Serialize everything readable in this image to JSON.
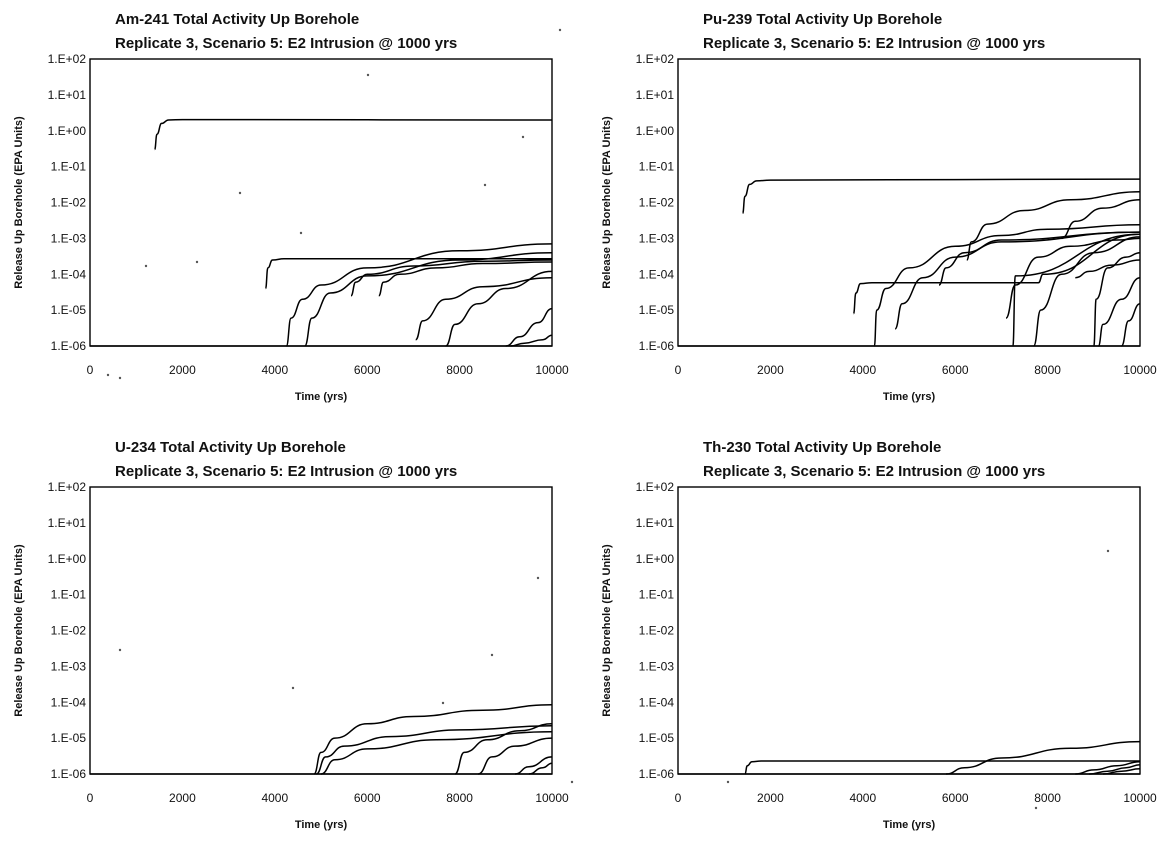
{
  "chart_data": [
    {
      "type": "line",
      "title": "Am-241 Total Activity Up Borehole",
      "subtitle": "Replicate 3, Scenario 5: E2 Intrusion @ 1000 yrs",
      "xlabel": "Time (yrs)",
      "ylabel": "Release Up Borehole (EPA Units)",
      "xlim": [
        0,
        10000
      ],
      "ylim": [
        1e-06,
        100
      ],
      "yscale": "log",
      "grid": false,
      "x_ticks": [
        "0",
        "2000",
        "4000",
        "6000",
        "8000",
        "10000"
      ],
      "y_ticks": [
        "1.E-06",
        "1.E-05",
        "1.E-04",
        "1.E-03",
        "1.E-02",
        "1.E-01",
        "1.E+00",
        "1.E+01",
        "1.E+02"
      ],
      "series": [
        {
          "x": [
            1400,
            1450,
            1550,
            1700,
            2000,
            10000
          ],
          "y": [
            0.3,
            0.8,
            1.6,
            2.0,
            2.05,
            2.0
          ]
        },
        {
          "x": [
            3800,
            3850,
            3950,
            4200,
            10000
          ],
          "y": [
            4e-05,
            0.00015,
            0.00025,
            0.00027,
            0.00027
          ]
        },
        {
          "x": [
            4250,
            4350,
            4600,
            5000,
            6000,
            8000,
            10000
          ],
          "y": [
            1e-06,
            6e-06,
            2e-05,
            5e-05,
            0.00015,
            0.00045,
            0.0007
          ]
        },
        {
          "x": [
            4650,
            4800,
            5200,
            6000,
            8000,
            10000
          ],
          "y": [
            1e-06,
            6e-06,
            3e-05,
            9e-05,
            0.00025,
            0.0004
          ]
        },
        {
          "x": [
            5650,
            5750,
            6000,
            7000,
            8500,
            10000
          ],
          "y": [
            2.5e-05,
            6e-05,
            0.0001,
            0.00017,
            0.00023,
            0.00025
          ]
        },
        {
          "x": [
            6250,
            6350,
            6700,
            7500,
            8500,
            10000
          ],
          "y": [
            2.5e-05,
            6e-05,
            0.0001,
            0.00015,
            0.0002,
            0.00022
          ]
        },
        {
          "x": [
            7050,
            7200,
            7700,
            8500,
            10000
          ],
          "y": [
            1.5e-06,
            5e-06,
            2e-05,
            4.5e-05,
            8e-05
          ]
        },
        {
          "x": [
            7700,
            7900,
            8400,
            9000,
            10000
          ],
          "y": [
            1e-06,
            4e-06,
            1.5e-05,
            4e-05,
            0.00012
          ]
        },
        {
          "x": [
            9000,
            9300,
            9700,
            10000
          ],
          "y": [
            1e-06,
            1.8e-06,
            4.5e-06,
            1.1e-05
          ]
        },
        {
          "x": [
            9100,
            9400,
            9800,
            10000
          ],
          "y": [
            1e-06,
            1.2e-06,
            1.5e-06,
            2e-06
          ]
        },
        {
          "x": [
            0,
            10000
          ],
          "y": [
            1e-06,
            1e-06
          ]
        }
      ]
    },
    {
      "type": "line",
      "title": "Pu-239 Total Activity Up Borehole",
      "subtitle": "Replicate 3, Scenario 5: E2 Intrusion @ 1000 yrs",
      "xlabel": "Time (yrs)",
      "ylabel": "Release Up Borehole (EPA Units)",
      "xlim": [
        0,
        10000
      ],
      "ylim": [
        1e-06,
        100
      ],
      "yscale": "log",
      "grid": false,
      "x_ticks": [
        "0",
        "2000",
        "4000",
        "6000",
        "8000",
        "10000"
      ],
      "y_ticks": [
        "1.E-06",
        "1.E-05",
        "1.E-04",
        "1.E-03",
        "1.E-02",
        "1.E-01",
        "1.E+00",
        "1.E+01",
        "1.E+02"
      ],
      "series": [
        {
          "x": [
            1400,
            1450,
            1550,
            1700,
            2000,
            10000
          ],
          "y": [
            0.005,
            0.015,
            0.032,
            0.04,
            0.042,
            0.045
          ]
        },
        {
          "x": [
            3800,
            3850,
            3950,
            4200,
            7800,
            7900,
            10000
          ],
          "y": [
            8e-06,
            3e-05,
            5.5e-05,
            5.8e-05,
            5.8e-05,
            0.0001,
            0.0013
          ]
        },
        {
          "x": [
            4250,
            4300,
            4500,
            5000,
            6000,
            7000,
            8000,
            10000
          ],
          "y": [
            1e-06,
            1e-05,
            4e-05,
            0.00015,
            0.0006,
            0.0012,
            0.0018,
            0.0024
          ]
        },
        {
          "x": [
            4700,
            4850,
            5300,
            6000,
            7000,
            10000
          ],
          "y": [
            3e-06,
            1.5e-05,
            8e-05,
            0.0003,
            0.0008,
            0.0015
          ]
        },
        {
          "x": [
            5650,
            5800,
            6200,
            7000,
            10000
          ],
          "y": [
            5e-05,
            0.00015,
            0.0004,
            0.0009,
            0.0015
          ]
        },
        {
          "x": [
            6250,
            6350,
            6700,
            7500,
            8500,
            10000
          ],
          "y": [
            0.00025,
            0.0008,
            0.0025,
            0.006,
            0.012,
            0.02
          ]
        },
        {
          "x": [
            7100,
            7300,
            7800,
            8500,
            9500,
            10000
          ],
          "y": [
            6e-06,
            5e-05,
            0.0003,
            0.0006,
            0.0009,
            0.001
          ]
        },
        {
          "x": [
            7250,
            7300,
            10000
          ],
          "y": [
            1e-06,
            9e-05,
            0.0013
          ]
        },
        {
          "x": [
            7700,
            7850,
            8300,
            9000,
            10000
          ],
          "y": [
            1e-06,
            1e-05,
            0.0001,
            0.0004,
            0.0011
          ]
        },
        {
          "x": [
            8300,
            8600,
            9200,
            10000
          ],
          "y": [
            0.001,
            0.003,
            0.007,
            0.012
          ]
        },
        {
          "x": [
            8600,
            8900,
            9400,
            10000
          ],
          "y": [
            8e-05,
            0.00012,
            0.00018,
            0.00025
          ]
        },
        {
          "x": [
            9000,
            9050,
            9300,
            9700,
            10000
          ],
          "y": [
            1e-06,
            2e-05,
            0.00015,
            0.0003,
            0.0004
          ]
        },
        {
          "x": [
            9100,
            9200,
            9600,
            10000
          ],
          "y": [
            1e-06,
            4e-06,
            2e-05,
            8e-05
          ]
        },
        {
          "x": [
            9600,
            9750,
            10000
          ],
          "y": [
            1e-06,
            5e-06,
            1.5e-05
          ]
        },
        {
          "x": [
            0,
            10000
          ],
          "y": [
            1e-06,
            1e-06
          ]
        }
      ]
    },
    {
      "type": "line",
      "title": "U-234 Total Activity Up Borehole",
      "subtitle": "Replicate 3, Scenario 5: E2 Intrusion @ 1000 yrs",
      "xlabel": "Time (yrs)",
      "ylabel": "Release Up Borehole (EPA Units)",
      "xlim": [
        0,
        10000
      ],
      "ylim": [
        1e-06,
        100
      ],
      "yscale": "log",
      "grid": false,
      "x_ticks": [
        "0",
        "2000",
        "4000",
        "6000",
        "8000",
        "10000"
      ],
      "y_ticks": [
        "1.E-06",
        "1.E-05",
        "1.E-04",
        "1.E-03",
        "1.E-02",
        "1.E-01",
        "1.E+00",
        "1.E+01",
        "1.E+02"
      ],
      "series": [
        {
          "x": [
            4850,
            5000,
            5300,
            6000,
            7000,
            8500,
            10000
          ],
          "y": [
            1e-06,
            4e-06,
            1e-05,
            2.5e-05,
            4e-05,
            6e-05,
            8.5e-05
          ]
        },
        {
          "x": [
            4900,
            5100,
            5500,
            6500,
            8000,
            10000
          ],
          "y": [
            1e-06,
            3e-06,
            6e-06,
            1.1e-05,
            1.7e-05,
            2.2e-05
          ]
        },
        {
          "x": [
            5000,
            5300,
            6000,
            7500,
            10000
          ],
          "y": [
            1e-06,
            2.5e-06,
            5e-06,
            9e-06,
            1.5e-05
          ]
        },
        {
          "x": [
            7900,
            8100,
            8600,
            9300,
            10000
          ],
          "y": [
            1e-06,
            4e-06,
            9e-06,
            1.6e-05,
            2.5e-05
          ]
        },
        {
          "x": [
            8400,
            8700,
            9200,
            10000
          ],
          "y": [
            1e-06,
            3e-06,
            6e-06,
            1e-05
          ]
        },
        {
          "x": [
            9200,
            9500,
            10000
          ],
          "y": [
            1e-06,
            1.6e-06,
            3e-06
          ]
        },
        {
          "x": [
            9500,
            9800,
            10000
          ],
          "y": [
            1e-06,
            1.5e-06,
            2e-06
          ]
        },
        {
          "x": [
            0,
            10000
          ],
          "y": [
            1e-06,
            1e-06
          ]
        }
      ]
    },
    {
      "type": "line",
      "title": "Th-230 Total Activity Up Borehole",
      "subtitle": "Replicate 3, Scenario 5: E2 Intrusion @ 1000 yrs",
      "xlabel": "Time (yrs)",
      "ylabel": "Release Up Borehole (EPA Units)",
      "xlim": [
        0,
        10000
      ],
      "ylim": [
        1e-06,
        100
      ],
      "yscale": "log",
      "grid": false,
      "x_ticks": [
        "0",
        "2000",
        "4000",
        "6000",
        "8000",
        "10000"
      ],
      "y_ticks": [
        "1.E-06",
        "1.E-05",
        "1.E-04",
        "1.E-03",
        "1.E-02",
        "1.E-01",
        "1.E+00",
        "1.E+01",
        "1.E+02"
      ],
      "series": [
        {
          "x": [
            1450,
            1500,
            1600,
            1800,
            10000
          ],
          "y": [
            1e-06,
            1.7e-06,
            2.2e-06,
            2.3e-06,
            2.3e-06
          ]
        },
        {
          "x": [
            5800,
            6200,
            7000,
            8500,
            10000
          ],
          "y": [
            1e-06,
            1.5e-06,
            2.8e-06,
            5.2e-06,
            8e-06
          ]
        },
        {
          "x": [
            8600,
            9000,
            9500,
            10000
          ],
          "y": [
            1e-06,
            1.3e-06,
            1.7e-06,
            2.2e-06
          ]
        },
        {
          "x": [
            8900,
            9300,
            9700,
            10000
          ],
          "y": [
            1e-06,
            1.2e-06,
            1.5e-06,
            1.8e-06
          ]
        },
        {
          "x": [
            9200,
            9600,
            10000
          ],
          "y": [
            1e-06,
            1.2e-06,
            1.4e-06
          ]
        },
        {
          "x": [
            0,
            10000
          ],
          "y": [
            1e-06,
            1e-06
          ]
        }
      ]
    }
  ]
}
